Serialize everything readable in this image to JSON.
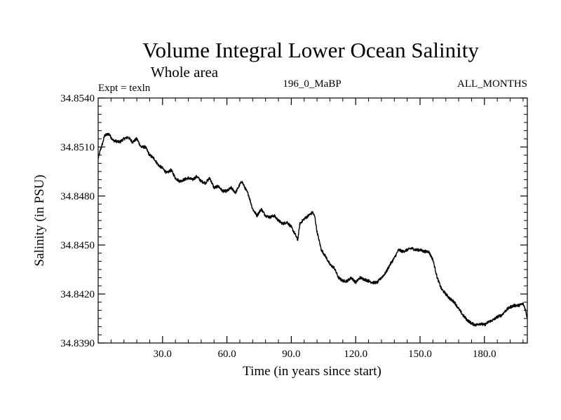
{
  "chart_data": {
    "type": "line",
    "title": "Volume Integral Lower Ocean Salinity",
    "subtitle": "Whole area",
    "experiment_label": "Expt = texln",
    "center_label": "196_0_MaBP",
    "right_label": "ALL_MONTHS",
    "xlabel": "Time (in years since start)",
    "ylabel": "Salinity (in PSU)",
    "xlim": [
      0,
      200
    ],
    "ylim": [
      34.839,
      34.854
    ],
    "x_ticks": [
      30,
      60,
      90,
      120,
      150,
      180
    ],
    "x_tick_labels": [
      "30.0",
      "60.0",
      "90.0",
      "120.0",
      "150.0",
      "180.0"
    ],
    "y_ticks": [
      34.839,
      34.842,
      34.845,
      34.848,
      34.851,
      34.854
    ],
    "y_tick_labels": [
      "34.8390",
      "34.8420",
      "34.8450",
      "34.8480",
      "34.8510",
      "34.8540"
    ],
    "grid": false,
    "line_color": "#000000",
    "series": [
      {
        "name": "salinity",
        "x": [
          0,
          1,
          2,
          3,
          5,
          7,
          10,
          12,
          14,
          16,
          18,
          20,
          22,
          24,
          26,
          28,
          30,
          32,
          34,
          36,
          38,
          40,
          42,
          44,
          46,
          48,
          50,
          52,
          54,
          56,
          58,
          60,
          62,
          64,
          66,
          67,
          68,
          70,
          72,
          74,
          76,
          78,
          80,
          82,
          84,
          86,
          88,
          90,
          92,
          93,
          94,
          96,
          98,
          100,
          101,
          102,
          104,
          106,
          108,
          110,
          112,
          114,
          116,
          118,
          120,
          122,
          124,
          126,
          128,
          130,
          132,
          134,
          136,
          138,
          140,
          142,
          144,
          146,
          148,
          150,
          152,
          154,
          156,
          158,
          160,
          162,
          164,
          166,
          168,
          170,
          172,
          174,
          176,
          178,
          180,
          182,
          184,
          186,
          188,
          190,
          192,
          194,
          196,
          198,
          199,
          200
        ],
        "values": [
          34.8503,
          34.8508,
          34.8512,
          34.8517,
          34.8518,
          34.8514,
          34.8513,
          34.8515,
          34.8516,
          34.8513,
          34.8515,
          34.851,
          34.851,
          34.8505,
          34.8503,
          34.8499,
          34.8497,
          34.8494,
          34.8496,
          34.8491,
          34.8489,
          34.849,
          34.8491,
          34.849,
          34.8492,
          34.8489,
          34.8488,
          34.8491,
          34.8485,
          34.8486,
          34.8483,
          34.8483,
          34.8485,
          34.8482,
          34.8487,
          34.8489,
          34.8486,
          34.8481,
          34.8472,
          34.8468,
          34.8472,
          34.8468,
          34.8467,
          34.8468,
          34.8465,
          34.8463,
          34.8464,
          34.8461,
          34.8456,
          34.8453,
          34.8463,
          34.8466,
          34.8468,
          34.847,
          34.8467,
          34.8458,
          34.8447,
          34.8443,
          34.8438,
          34.8436,
          34.843,
          34.8428,
          34.8428,
          34.843,
          34.8427,
          34.843,
          34.8429,
          34.8428,
          34.8427,
          34.8427,
          34.843,
          34.8433,
          34.8438,
          34.8442,
          34.8447,
          34.8446,
          34.8447,
          34.8448,
          34.8447,
          34.8447,
          34.8446,
          34.8446,
          34.8441,
          34.843,
          34.8423,
          34.842,
          34.8417,
          34.8415,
          34.8411,
          34.8407,
          34.8404,
          34.8402,
          34.8401,
          34.8402,
          34.8401,
          34.8403,
          34.8404,
          34.8406,
          34.8407,
          34.841,
          34.8412,
          34.8413,
          34.8413,
          34.8414,
          34.8411,
          34.8405
        ]
      }
    ]
  }
}
